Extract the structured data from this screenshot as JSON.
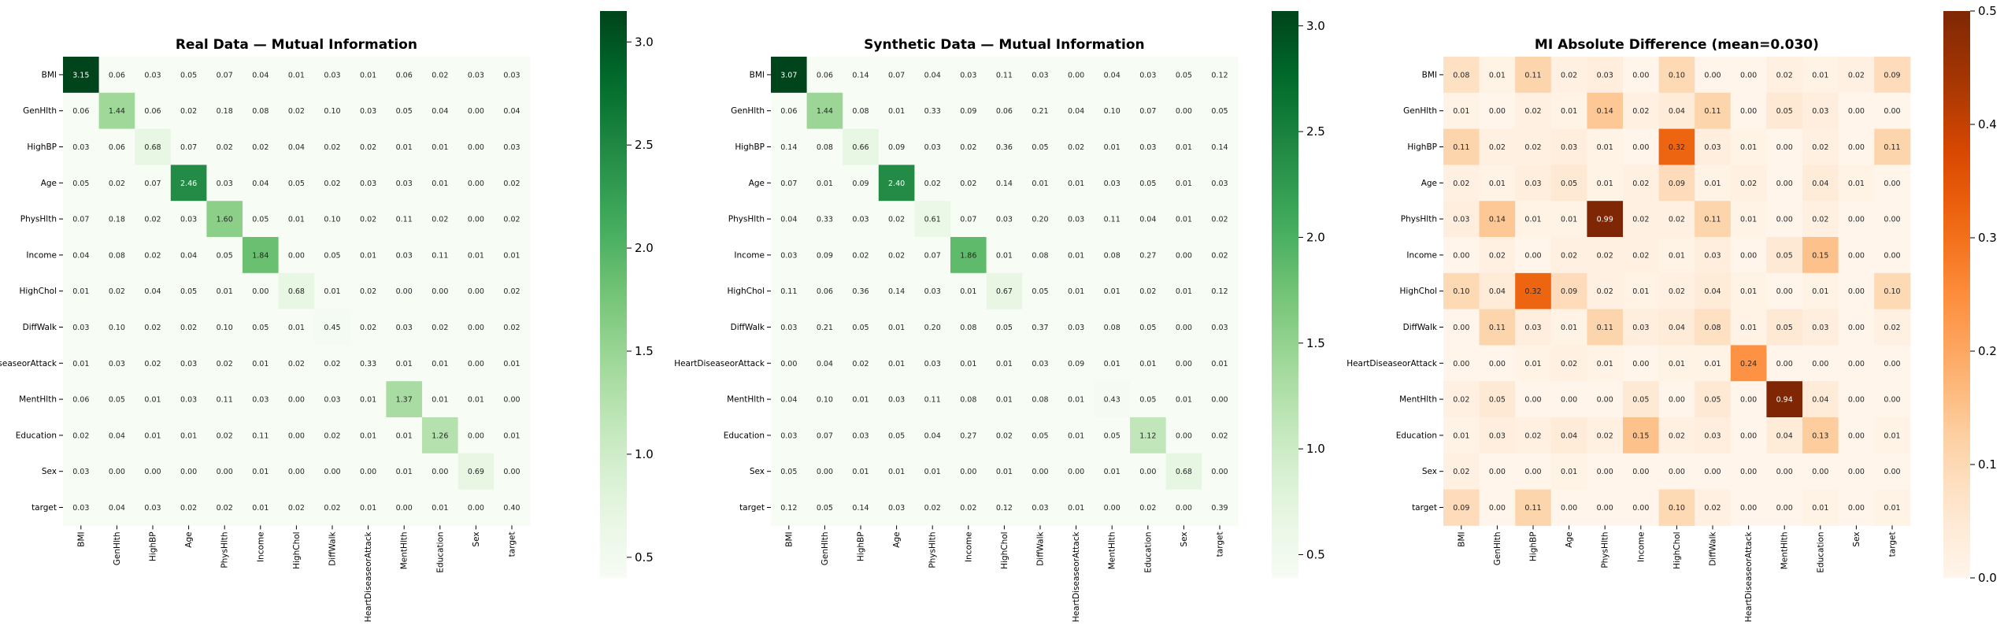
{
  "chart_data": [
    {
      "type": "heatmap",
      "title": "Real Data — Mutual Information",
      "x_categories": [
        "BMI",
        "GenHlth",
        "HighBP",
        "Age",
        "PhysHlth",
        "Income",
        "HighChol",
        "DiffWalk",
        "HeartDiseaseorAttack",
        "MentHlth",
        "Education",
        "Sex",
        "target"
      ],
      "y_categories": [
        "BMI",
        "GenHlth",
        "HighBP",
        "Age",
        "PhysHlth",
        "Income",
        "HighChol",
        "DiffWalk",
        "HeartDiseaseorAttack",
        "MentHlth",
        "Education",
        "Sex",
        "target"
      ],
      "colormap": "Greens",
      "value_range": [
        0.4,
        3.15
      ],
      "colorbar_ticks": [
        0.5,
        1.0,
        1.5,
        2.0,
        2.5,
        3.0
      ],
      "colorbar_tick_labels": [
        "0.5",
        "1.0",
        "1.5",
        "2.0",
        "2.5",
        "3.0"
      ],
      "matrix": [
        [
          3.15,
          0.06,
          0.03,
          0.05,
          0.07,
          0.04,
          0.01,
          0.03,
          0.01,
          0.06,
          0.02,
          0.03,
          0.03
        ],
        [
          0.06,
          1.44,
          0.06,
          0.02,
          0.18,
          0.08,
          0.02,
          0.1,
          0.03,
          0.05,
          0.04,
          0.0,
          0.04
        ],
        [
          0.03,
          0.06,
          0.68,
          0.07,
          0.02,
          0.02,
          0.04,
          0.02,
          0.02,
          0.01,
          0.01,
          0.0,
          0.03
        ],
        [
          0.05,
          0.02,
          0.07,
          2.46,
          0.03,
          0.04,
          0.05,
          0.02,
          0.03,
          0.03,
          0.01,
          0.0,
          0.02
        ],
        [
          0.07,
          0.18,
          0.02,
          0.03,
          1.6,
          0.05,
          0.01,
          0.1,
          0.02,
          0.11,
          0.02,
          0.0,
          0.02
        ],
        [
          0.04,
          0.08,
          0.02,
          0.04,
          0.05,
          1.84,
          0.0,
          0.05,
          0.01,
          0.03,
          0.11,
          0.01,
          0.01
        ],
        [
          0.01,
          0.02,
          0.04,
          0.05,
          0.01,
          0.0,
          0.68,
          0.01,
          0.02,
          0.0,
          0.0,
          0.0,
          0.02
        ],
        [
          0.03,
          0.1,
          0.02,
          0.02,
          0.1,
          0.05,
          0.01,
          0.45,
          0.02,
          0.03,
          0.02,
          0.0,
          0.02
        ],
        [
          0.01,
          0.03,
          0.02,
          0.03,
          0.02,
          0.01,
          0.02,
          0.02,
          0.33,
          0.01,
          0.01,
          0.0,
          0.01
        ],
        [
          0.06,
          0.05,
          0.01,
          0.03,
          0.11,
          0.03,
          0.0,
          0.03,
          0.01,
          1.37,
          0.01,
          0.01,
          0.0
        ],
        [
          0.02,
          0.04,
          0.01,
          0.01,
          0.02,
          0.11,
          0.0,
          0.02,
          0.01,
          0.01,
          1.26,
          0.0,
          0.01
        ],
        [
          0.03,
          0.0,
          0.0,
          0.0,
          0.0,
          0.01,
          0.0,
          0.0,
          0.0,
          0.01,
          0.0,
          0.69,
          0.0
        ],
        [
          0.03,
          0.04,
          0.03,
          0.02,
          0.02,
          0.01,
          0.02,
          0.02,
          0.01,
          0.0,
          0.01,
          0.0,
          0.4
        ]
      ]
    },
    {
      "type": "heatmap",
      "title": "Synthetic Data — Mutual Information",
      "x_categories": [
        "BMI",
        "GenHlth",
        "HighBP",
        "Age",
        "PhysHlth",
        "Income",
        "HighChol",
        "DiffWalk",
        "HeartDiseaseorAttack",
        "MentHlth",
        "Education",
        "Sex",
        "target"
      ],
      "y_categories": [
        "BMI",
        "GenHlth",
        "HighBP",
        "Age",
        "PhysHlth",
        "Income",
        "HighChol",
        "DiffWalk",
        "HeartDiseaseorAttack",
        "MentHlth",
        "Education",
        "Sex",
        "target"
      ],
      "colormap": "Greens",
      "value_range": [
        0.39,
        3.07
      ],
      "colorbar_ticks": [
        0.5,
        1.0,
        1.5,
        2.0,
        2.5,
        3.0
      ],
      "colorbar_tick_labels": [
        "0.5",
        "1.0",
        "1.5",
        "2.0",
        "2.5",
        "3.0"
      ],
      "matrix": [
        [
          3.07,
          0.06,
          0.14,
          0.07,
          0.04,
          0.03,
          0.11,
          0.03,
          0.0,
          0.04,
          0.03,
          0.05,
          0.12
        ],
        [
          0.06,
          1.44,
          0.08,
          0.01,
          0.33,
          0.09,
          0.06,
          0.21,
          0.04,
          0.1,
          0.07,
          0.0,
          0.05
        ],
        [
          0.14,
          0.08,
          0.66,
          0.09,
          0.03,
          0.02,
          0.36,
          0.05,
          0.02,
          0.01,
          0.03,
          0.01,
          0.14
        ],
        [
          0.07,
          0.01,
          0.09,
          2.4,
          0.02,
          0.02,
          0.14,
          0.01,
          0.01,
          0.03,
          0.05,
          0.01,
          0.03
        ],
        [
          0.04,
          0.33,
          0.03,
          0.02,
          0.61,
          0.07,
          0.03,
          0.2,
          0.03,
          0.11,
          0.04,
          0.01,
          0.02
        ],
        [
          0.03,
          0.09,
          0.02,
          0.02,
          0.07,
          1.86,
          0.01,
          0.08,
          0.01,
          0.08,
          0.27,
          0.0,
          0.02
        ],
        [
          0.11,
          0.06,
          0.36,
          0.14,
          0.03,
          0.01,
          0.67,
          0.05,
          0.01,
          0.01,
          0.02,
          0.01,
          0.12
        ],
        [
          0.03,
          0.21,
          0.05,
          0.01,
          0.2,
          0.08,
          0.05,
          0.37,
          0.03,
          0.08,
          0.05,
          0.0,
          0.03
        ],
        [
          0.0,
          0.04,
          0.02,
          0.01,
          0.03,
          0.01,
          0.01,
          0.03,
          0.09,
          0.01,
          0.01,
          0.0,
          0.01
        ],
        [
          0.04,
          0.1,
          0.01,
          0.03,
          0.11,
          0.08,
          0.01,
          0.08,
          0.01,
          0.43,
          0.05,
          0.01,
          0.0
        ],
        [
          0.03,
          0.07,
          0.03,
          0.05,
          0.04,
          0.27,
          0.02,
          0.05,
          0.01,
          0.05,
          1.12,
          0.0,
          0.02
        ],
        [
          0.05,
          0.0,
          0.01,
          0.01,
          0.01,
          0.0,
          0.01,
          0.0,
          0.0,
          0.01,
          0.0,
          0.68,
          0.0
        ],
        [
          0.12,
          0.05,
          0.14,
          0.03,
          0.02,
          0.02,
          0.12,
          0.03,
          0.01,
          0.0,
          0.02,
          0.0,
          0.39
        ]
      ]
    },
    {
      "type": "heatmap",
      "title": "MI Absolute Difference (mean=0.030)",
      "x_categories": [
        "BMI",
        "GenHlth",
        "HighBP",
        "Age",
        "PhysHlth",
        "Income",
        "HighChol",
        "DiffWalk",
        "HeartDiseaseorAttack",
        "MentHlth",
        "Education",
        "Sex",
        "target"
      ],
      "y_categories": [
        "BMI",
        "GenHlth",
        "HighBP",
        "Age",
        "PhysHlth",
        "Income",
        "HighChol",
        "DiffWalk",
        "HeartDiseaseorAttack",
        "MentHlth",
        "Education",
        "Sex",
        "target"
      ],
      "colormap": "Oranges",
      "value_range": [
        0.0,
        0.5
      ],
      "colorbar_ticks": [
        0.0,
        0.1,
        0.2,
        0.3,
        0.4,
        0.5
      ],
      "colorbar_tick_labels": [
        "0.0",
        "0.1",
        "0.2",
        "0.3",
        "0.4",
        "0.5"
      ],
      "matrix": [
        [
          0.08,
          0.01,
          0.11,
          0.02,
          0.03,
          0.0,
          0.1,
          0.0,
          0.0,
          0.02,
          0.01,
          0.02,
          0.09
        ],
        [
          0.01,
          0.0,
          0.02,
          0.01,
          0.14,
          0.02,
          0.04,
          0.11,
          0.0,
          0.05,
          0.03,
          0.0,
          0.0
        ],
        [
          0.11,
          0.02,
          0.02,
          0.03,
          0.01,
          0.0,
          0.32,
          0.03,
          0.01,
          0.0,
          0.02,
          0.0,
          0.11
        ],
        [
          0.02,
          0.01,
          0.03,
          0.05,
          0.01,
          0.02,
          0.09,
          0.01,
          0.02,
          0.0,
          0.04,
          0.01,
          0.0
        ],
        [
          0.03,
          0.14,
          0.01,
          0.01,
          0.99,
          0.02,
          0.02,
          0.11,
          0.01,
          0.0,
          0.02,
          0.0,
          0.0
        ],
        [
          0.0,
          0.02,
          0.0,
          0.02,
          0.02,
          0.02,
          0.01,
          0.03,
          0.0,
          0.05,
          0.15,
          0.0,
          0.0
        ],
        [
          0.1,
          0.04,
          0.32,
          0.09,
          0.02,
          0.01,
          0.02,
          0.04,
          0.01,
          0.0,
          0.01,
          0.0,
          0.1
        ],
        [
          0.0,
          0.11,
          0.03,
          0.01,
          0.11,
          0.03,
          0.04,
          0.08,
          0.01,
          0.05,
          0.03,
          0.0,
          0.02
        ],
        [
          0.0,
          0.0,
          0.01,
          0.02,
          0.01,
          0.0,
          0.01,
          0.01,
          0.24,
          0.0,
          0.0,
          0.0,
          0.0
        ],
        [
          0.02,
          0.05,
          0.0,
          0.0,
          0.0,
          0.05,
          0.0,
          0.05,
          0.0,
          0.94,
          0.04,
          0.0,
          0.0
        ],
        [
          0.01,
          0.03,
          0.02,
          0.04,
          0.02,
          0.15,
          0.02,
          0.03,
          0.0,
          0.04,
          0.13,
          0.0,
          0.01
        ],
        [
          0.02,
          0.0,
          0.0,
          0.01,
          0.0,
          0.0,
          0.0,
          0.0,
          0.0,
          0.0,
          0.0,
          0.0,
          0.0
        ],
        [
          0.09,
          0.0,
          0.11,
          0.0,
          0.0,
          0.0,
          0.1,
          0.02,
          0.0,
          0.0,
          0.01,
          0.0,
          0.01
        ]
      ]
    }
  ]
}
